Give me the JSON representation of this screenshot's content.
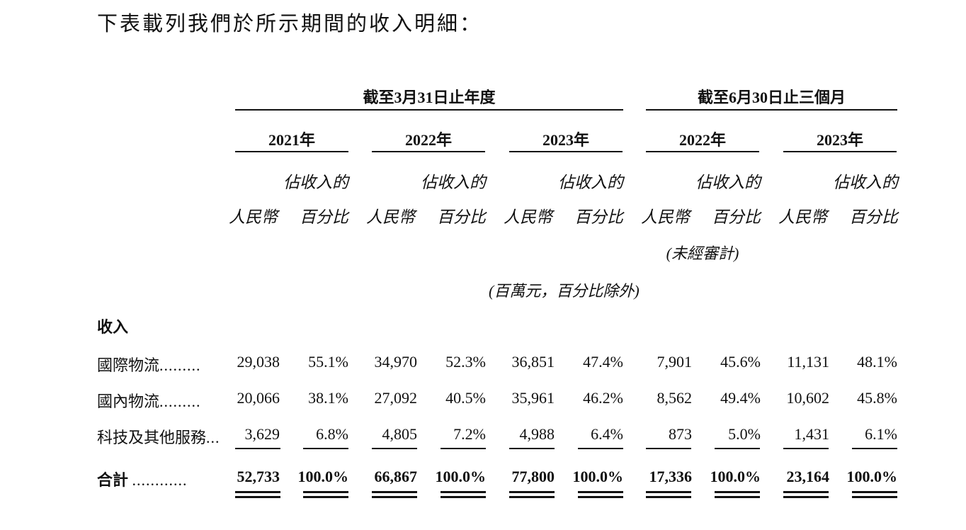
{
  "intro": "下表載列我們於所示期間的收入明細：",
  "groups": {
    "annual": "截至3月31日止年度",
    "quarter": "截至6月30日止三個月"
  },
  "years": [
    "2021年",
    "2022年",
    "2023年",
    "2022年",
    "2023年"
  ],
  "col_headers": {
    "pct_line1": "佔收入的",
    "rmb": "人民幣",
    "pct_line2": "百分比"
  },
  "unaudited": "(未經審計)",
  "unit_note": "(百萬元，百分比除外)",
  "section_title": "收入",
  "rows": [
    {
      "label": "國際物流",
      "leader": ".........",
      "values": [
        "29,038",
        "55.1%",
        "34,970",
        "52.3%",
        "36,851",
        "47.4%",
        "7,901",
        "45.6%",
        "11,131",
        "48.1%"
      ]
    },
    {
      "label": "國內物流",
      "leader": ".........",
      "values": [
        "20,066",
        "38.1%",
        "27,092",
        "40.5%",
        "35,961",
        "46.2%",
        "8,562",
        "49.4%",
        "10,602",
        "45.8%"
      ]
    },
    {
      "label": "科技及其他服務",
      "leader": "...",
      "values": [
        "3,629",
        "6.8%",
        "4,805",
        "7.2%",
        "4,988",
        "6.4%",
        "873",
        "5.0%",
        "1,431",
        "6.1%"
      ]
    }
  ],
  "total": {
    "label": "合計",
    "leader": "............",
    "values": [
      "52,733",
      "100.0%",
      "66,867",
      "100.0%",
      "77,800",
      "100.0%",
      "17,336",
      "100.0%",
      "23,164",
      "100.0%"
    ]
  }
}
